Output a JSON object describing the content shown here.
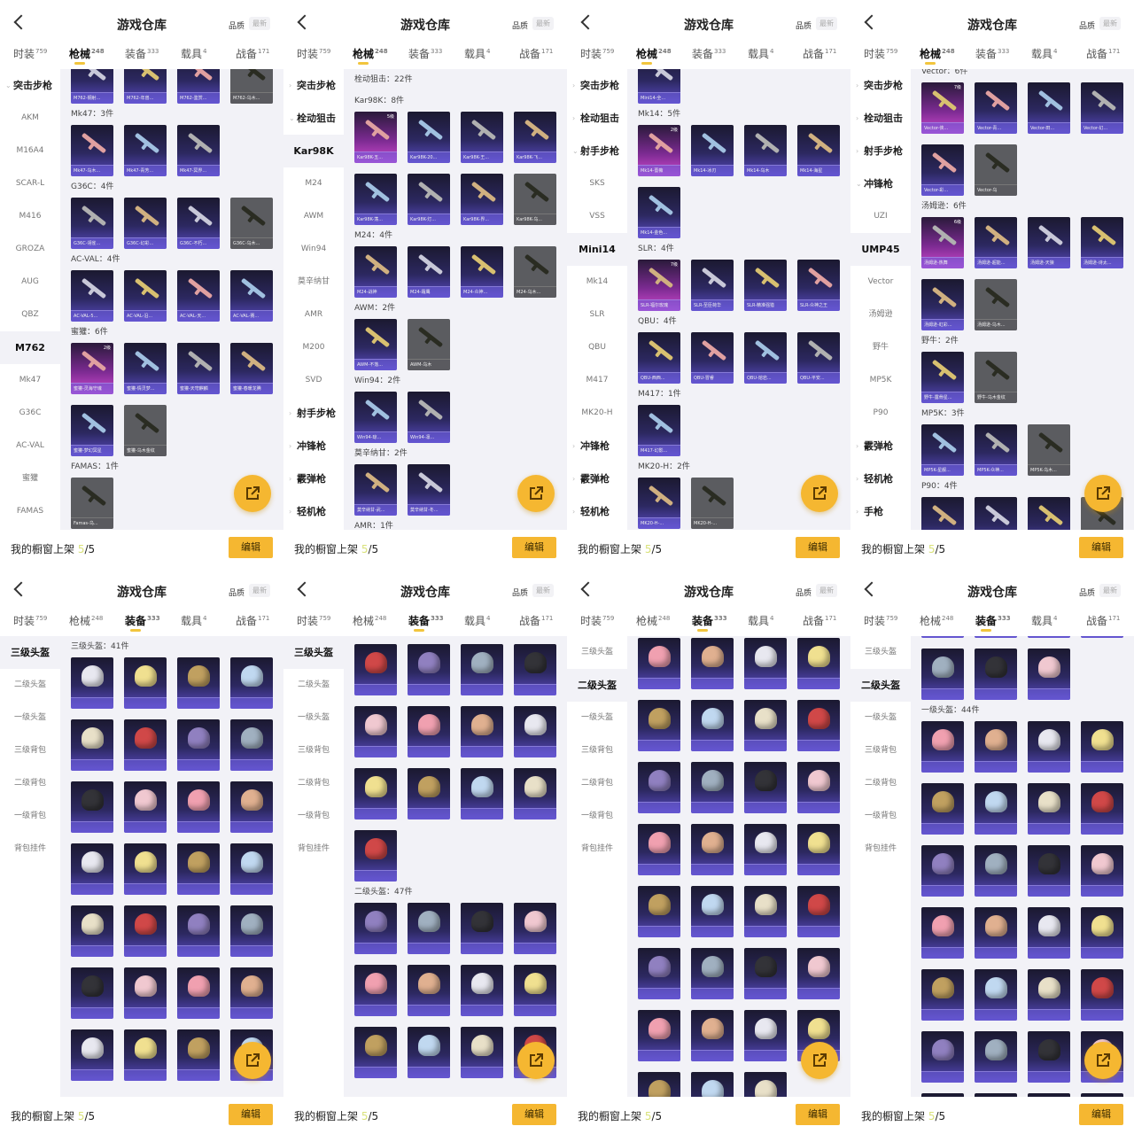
{
  "app": {
    "title": "游戏仓库",
    "sort_quality": "品质",
    "sort_newest": "最新",
    "tabs": [
      {
        "label": "时装",
        "count": "759"
      },
      {
        "label": "枪械",
        "count": "248"
      },
      {
        "label": "装备",
        "count": "333"
      },
      {
        "label": "载具",
        "count": "4"
      },
      {
        "label": "战备",
        "count": "171"
      }
    ],
    "showcase_label": "我的橱窗上架 ",
    "showcase_count": "5",
    "showcase_total": "/5",
    "edit_button": "编辑",
    "accent_color": "#f5b731"
  },
  "panels": [
    {
      "active_tab": 1,
      "sidebar": [
        {
          "label": "突击步枪",
          "group": true,
          "expanded": true
        },
        {
          "label": "AKM"
        },
        {
          "label": "M16A4"
        },
        {
          "label": "SCAR-L"
        },
        {
          "label": "M416"
        },
        {
          "label": "GROZA"
        },
        {
          "label": "AUG"
        },
        {
          "label": "QBZ"
        },
        {
          "label": "M762",
          "active": true
        },
        {
          "label": "Mk47"
        },
        {
          "label": "G36C"
        },
        {
          "label": "AC-VAL"
        },
        {
          "label": "蜜獾"
        },
        {
          "label": "FAMAS"
        }
      ],
      "content": [
        {
          "tiles": [
            {
              "label": "M762-钢射..."
            },
            {
              "label": "M762-年兽..."
            },
            {
              "label": "M762-鉴赏..."
            },
            {
              "label": "M762-乌木...",
              "style": "gray"
            }
          ]
        },
        {
          "header": "Mk47：3件"
        },
        {
          "tiles": [
            {
              "label": "Mk47-乌木..."
            },
            {
              "label": "Mk47-青芳..."
            },
            {
              "label": "Mk47-冥界..."
            }
          ]
        },
        {
          "header": "G36C：4件"
        },
        {
          "tiles": [
            {
              "label": "G36C-翎雀..."
            },
            {
              "label": "G36C-幻彩..."
            },
            {
              "label": "G36C-不朽..."
            },
            {
              "label": "G36C-乌木...",
              "style": "gray"
            }
          ]
        },
        {
          "header": "AC-VAL：4件"
        },
        {
          "tiles": [
            {
              "label": "AC-VAL-5..."
            },
            {
              "label": "AC-VAL-沿..."
            },
            {
              "label": "AC-VAL-天..."
            },
            {
              "label": "AC-VAL-赛..."
            }
          ]
        },
        {
          "header": "蜜獾：6件"
        },
        {
          "tiles": [
            {
              "label": "蜜獾-灵海守魂",
              "style": "pink",
              "badge": "2级"
            },
            {
              "label": "蜜獾-情灵梦..."
            },
            {
              "label": "蜜獾-天穹麒麟"
            },
            {
              "label": "蜜獾-春暖龙腾"
            }
          ]
        },
        {
          "tiles": [
            {
              "label": "蜜獾-梦幻冥星"
            },
            {
              "label": "蜜獾-乌木金纹",
              "style": "gray"
            }
          ]
        },
        {
          "header": "FAMAS：1件"
        },
        {
          "tiles": [
            {
              "label": "Famas-乌...",
              "style": "gray"
            }
          ]
        }
      ]
    },
    {
      "active_tab": 1,
      "sidebar": [
        {
          "label": "突击步枪",
          "group": true
        },
        {
          "label": "栓动狙击",
          "group": true,
          "expanded": true
        },
        {
          "label": "Kar98K",
          "active": true
        },
        {
          "label": "M24"
        },
        {
          "label": "AWM"
        },
        {
          "label": "Win94"
        },
        {
          "label": "莫辛纳甘"
        },
        {
          "label": "AMR"
        },
        {
          "label": "M200"
        },
        {
          "label": "SVD"
        },
        {
          "label": "射手步枪",
          "group": true
        },
        {
          "label": "冲锋枪",
          "group": true
        },
        {
          "label": "霰弹枪",
          "group": true
        },
        {
          "label": "轻机枪",
          "group": true
        }
      ],
      "content": [
        {
          "header": "栓动狙击：22件"
        },
        {
          "header": "Kar98K：8件"
        },
        {
          "tiles": [
            {
              "label": "Kar98K-五...",
              "style": "pink",
              "badge": "5级"
            },
            {
              "label": "Kar98K-20..."
            },
            {
              "label": "Kar98K-王..."
            },
            {
              "label": "Kar98K-飞..."
            }
          ]
        },
        {
          "tiles": [
            {
              "label": "Kar98K-荡..."
            },
            {
              "label": "Kar98K-灯..."
            },
            {
              "label": "Kar98K-界..."
            },
            {
              "label": "Kar98K-乌...",
              "style": "gray"
            }
          ]
        },
        {
          "header": "M24：4件"
        },
        {
          "tiles": [
            {
              "label": "M24-战神"
            },
            {
              "label": "M24-霜鹰"
            },
            {
              "label": "M24-众神..."
            },
            {
              "label": "M24-乌木...",
              "style": "gray"
            }
          ]
        },
        {
          "header": "AWM：2件"
        },
        {
          "tiles": [
            {
              "label": "AWM-不落..."
            },
            {
              "label": "AWM-乌木",
              "style": "gray"
            }
          ]
        },
        {
          "header": "Win94：2件"
        },
        {
          "tiles": [
            {
              "label": "Win94-琼..."
            },
            {
              "label": "Win94-凛..."
            }
          ]
        },
        {
          "header": "莫辛纳甘：2件"
        },
        {
          "tiles": [
            {
              "label": "莫辛纳甘-武..."
            },
            {
              "label": "莫辛纳甘-冬..."
            }
          ]
        },
        {
          "header": "AMR：1件"
        }
      ]
    },
    {
      "active_tab": 1,
      "sidebar": [
        {
          "label": "突击步枪",
          "group": true
        },
        {
          "label": "栓动狙击",
          "group": true
        },
        {
          "label": "射手步枪",
          "group": true,
          "expanded": true
        },
        {
          "label": "SKS"
        },
        {
          "label": "VSS"
        },
        {
          "label": "Mini14",
          "active": true
        },
        {
          "label": "Mk14"
        },
        {
          "label": "SLR"
        },
        {
          "label": "QBU"
        },
        {
          "label": "M417"
        },
        {
          "label": "MK20-H"
        },
        {
          "label": "冲锋枪",
          "group": true
        },
        {
          "label": "霰弹枪",
          "group": true
        },
        {
          "label": "轻机枪",
          "group": true
        }
      ],
      "content": [
        {
          "tiles": [
            {
              "label": "Mini14-全..."
            }
          ]
        },
        {
          "header": "Mk14：5件"
        },
        {
          "tiles": [
            {
              "label": "Mk14-蔷薇",
              "style": "pink",
              "badge": "2级"
            },
            {
              "label": "Mk14-冰刃"
            },
            {
              "label": "Mk14-乌木"
            },
            {
              "label": "Mk14-海星"
            }
          ]
        },
        {
          "tiles": [
            {
              "label": "Mk14-金色..."
            }
          ]
        },
        {
          "header": "SLR：4件"
        },
        {
          "tiles": [
            {
              "label": "SLR-福尔玫瑰",
              "style": "pink",
              "badge": "7级"
            },
            {
              "label": "SLR-至臣荷华"
            },
            {
              "label": "SLR-精准强猎"
            },
            {
              "label": "SLR-众神之王"
            }
          ]
        },
        {
          "header": "QBU：4件"
        },
        {
          "tiles": [
            {
              "label": "QBU-西西..."
            },
            {
              "label": "QBU-冒睿"
            },
            {
              "label": "QBU-熔岩..."
            },
            {
              "label": "QBU-平安..."
            }
          ]
        },
        {
          "header": "M417：1件"
        },
        {
          "tiles": [
            {
              "label": "M417-幻影..."
            }
          ]
        },
        {
          "header": "MK20-H：2件"
        },
        {
          "tiles": [
            {
              "label": "MK20-H-..."
            },
            {
              "label": "MK20-H-...",
              "style": "gray"
            }
          ]
        }
      ]
    },
    {
      "active_tab": 1,
      "sidebar": [
        {
          "label": "突击步枪",
          "group": true
        },
        {
          "label": "栓动狙击",
          "group": true
        },
        {
          "label": "射手步枪",
          "group": true
        },
        {
          "label": "冲锋枪",
          "group": true,
          "expanded": true
        },
        {
          "label": "UZI"
        },
        {
          "label": "UMP45",
          "active": true
        },
        {
          "label": "Vector"
        },
        {
          "label": "汤姆逊"
        },
        {
          "label": "野牛"
        },
        {
          "label": "MP5K"
        },
        {
          "label": "P90"
        },
        {
          "label": "霰弹枪",
          "group": true
        },
        {
          "label": "轻机枪",
          "group": true
        },
        {
          "label": "手枪",
          "group": true
        }
      ],
      "content": [
        {
          "header": "Vector：6件"
        },
        {
          "tiles": [
            {
              "label": "Vector-侠...",
              "style": "pink",
              "badge": "7级"
            },
            {
              "label": "Vector-青..."
            },
            {
              "label": "Vector-田..."
            },
            {
              "label": "Vector-幻..."
            }
          ]
        },
        {
          "tiles": [
            {
              "label": "Vector-彩..."
            },
            {
              "label": "Vector-乌",
              "style": "gray"
            }
          ]
        },
        {
          "header": "汤姆逊：6件"
        },
        {
          "tiles": [
            {
              "label": "汤姆逊-热舞",
              "style": "pink",
              "badge": "6级"
            },
            {
              "label": "汤姆逊-超能..."
            },
            {
              "label": "汤姆逊-天狼"
            },
            {
              "label": "汤姆逊-诗太..."
            }
          ]
        },
        {
          "tiles": [
            {
              "label": "汤姆逊-虹彩..."
            },
            {
              "label": "汤姆逊-乌木...",
              "style": "gray"
            }
          ]
        },
        {
          "header": "野牛：2件"
        },
        {
          "tiles": [
            {
              "label": "野牛-露骨星..."
            },
            {
              "label": "野牛-乌木金纹",
              "style": "gray"
            }
          ]
        },
        {
          "header": "MP5K：3件"
        },
        {
          "tiles": [
            {
              "label": "MP5K-星舰..."
            },
            {
              "label": "MP5K-众神..."
            },
            {
              "label": "MP5K-乌木...",
              "style": "gray"
            }
          ]
        },
        {
          "header": "P90：4件"
        },
        {
          "tiles": [
            {
              "label": ""
            },
            {
              "label": ""
            },
            {
              "label": ""
            },
            {
              "label": "",
              "style": "gray"
            }
          ]
        }
      ]
    },
    {
      "active_tab": 2,
      "helmets": true,
      "sidebar": [
        {
          "label": "三级头盔",
          "active": true
        },
        {
          "label": "二级头盔"
        },
        {
          "label": "一级头盔"
        },
        {
          "label": "三级背包"
        },
        {
          "label": "二级背包"
        },
        {
          "label": "一级背包"
        },
        {
          "label": "背包挂件"
        }
      ],
      "content": [
        {
          "header": "三级头盔：41件"
        },
        {
          "count": 4
        },
        {
          "count": 4
        },
        {
          "count": 4
        },
        {
          "count": 4
        },
        {
          "count": 4
        },
        {
          "count": 4
        },
        {
          "count": 4
        }
      ]
    },
    {
      "active_tab": 2,
      "helmets": true,
      "sidebar": [
        {
          "label": "三级头盔",
          "active": true
        },
        {
          "label": "二级头盔"
        },
        {
          "label": "一级头盔"
        },
        {
          "label": "三级背包"
        },
        {
          "label": "二级背包"
        },
        {
          "label": "一级背包"
        },
        {
          "label": "背包挂件"
        }
      ],
      "content": [
        {
          "count": 4
        },
        {
          "count": 4
        },
        {
          "count": 4
        },
        {
          "count": 1
        },
        {
          "header": "二级头盔：47件"
        },
        {
          "count": 4
        },
        {
          "count": 4
        },
        {
          "count": 4
        }
      ]
    },
    {
      "active_tab": 2,
      "helmets": true,
      "sidebar": [
        {
          "label": "三级头盔"
        },
        {
          "label": "二级头盔",
          "active": true
        },
        {
          "label": "一级头盔"
        },
        {
          "label": "三级背包"
        },
        {
          "label": "二级背包"
        },
        {
          "label": "一级背包"
        },
        {
          "label": "背包挂件"
        }
      ],
      "content": [
        {
          "count": 4
        },
        {
          "count": 4
        },
        {
          "count": 4
        },
        {
          "count": 4
        },
        {
          "count": 4
        },
        {
          "count": 4
        },
        {
          "count": 4
        },
        {
          "count": 3
        }
      ]
    },
    {
      "active_tab": 2,
      "helmets": true,
      "sidebar": [
        {
          "label": "三级头盔"
        },
        {
          "label": "二级头盔",
          "active": true
        },
        {
          "label": "一级头盔"
        },
        {
          "label": "三级背包"
        },
        {
          "label": "二级背包"
        },
        {
          "label": "一级背包"
        },
        {
          "label": "背包挂件"
        }
      ],
      "content": [
        {
          "count": 4
        },
        {
          "count": 3
        },
        {
          "header": "一级头盔：44件"
        },
        {
          "count": 4
        },
        {
          "count": 4
        },
        {
          "count": 4
        },
        {
          "count": 4
        },
        {
          "count": 4
        },
        {
          "count": 4
        },
        {
          "count": 4
        }
      ]
    }
  ]
}
